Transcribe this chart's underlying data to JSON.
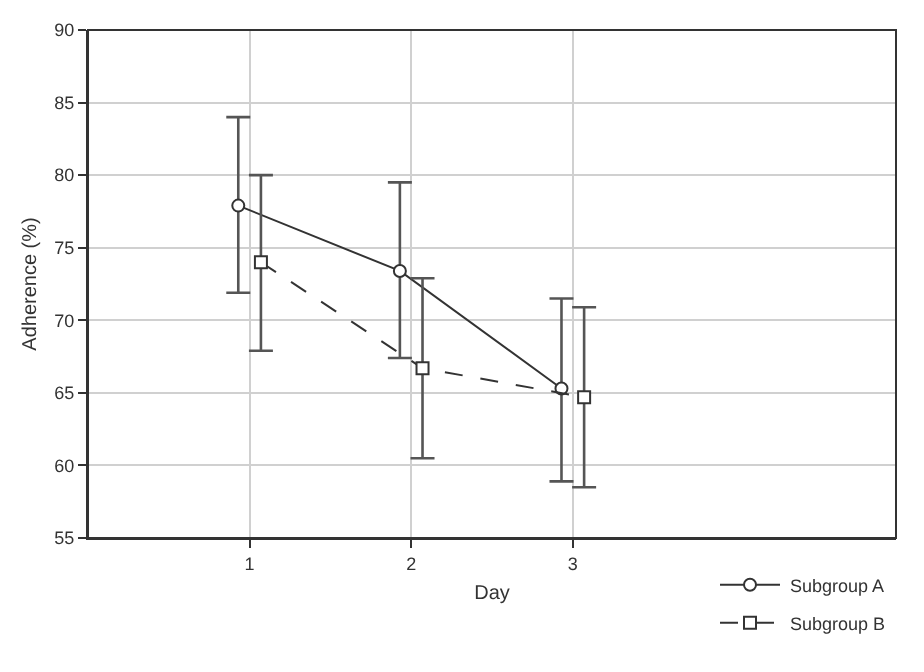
{
  "chart_data": {
    "type": "line",
    "xlabel": "Day",
    "ylabel": "Adherence (%)",
    "xlim": [
      0,
      5
    ],
    "xticks": [
      1,
      2,
      3
    ],
    "ylim": [
      55,
      90
    ],
    "yticks": [
      55,
      60,
      65,
      70,
      75,
      80,
      85,
      90
    ],
    "grid": true,
    "legend": "bottom right",
    "series": [
      {
        "name": "Subgroup A",
        "color": "#333333",
        "marker": "circle",
        "line_style": "solid",
        "x": [
          0.93,
          1.93,
          2.93
        ],
        "values": [
          77.9,
          73.4,
          65.3
        ],
        "errors": [
          [
            71.9,
            84.0
          ],
          [
            67.4,
            79.5
          ],
          [
            58.9,
            71.5
          ]
        ]
      },
      {
        "name": "Subgroup B",
        "color": "#333333",
        "marker": "square",
        "line_style": "dashed",
        "x": [
          1.07,
          2.07,
          3.07
        ],
        "values": [
          74.0,
          66.7,
          64.7
        ],
        "errors": [
          [
            67.9,
            80.0
          ],
          [
            60.5,
            72.9
          ],
          [
            58.5,
            70.9
          ]
        ]
      }
    ]
  }
}
